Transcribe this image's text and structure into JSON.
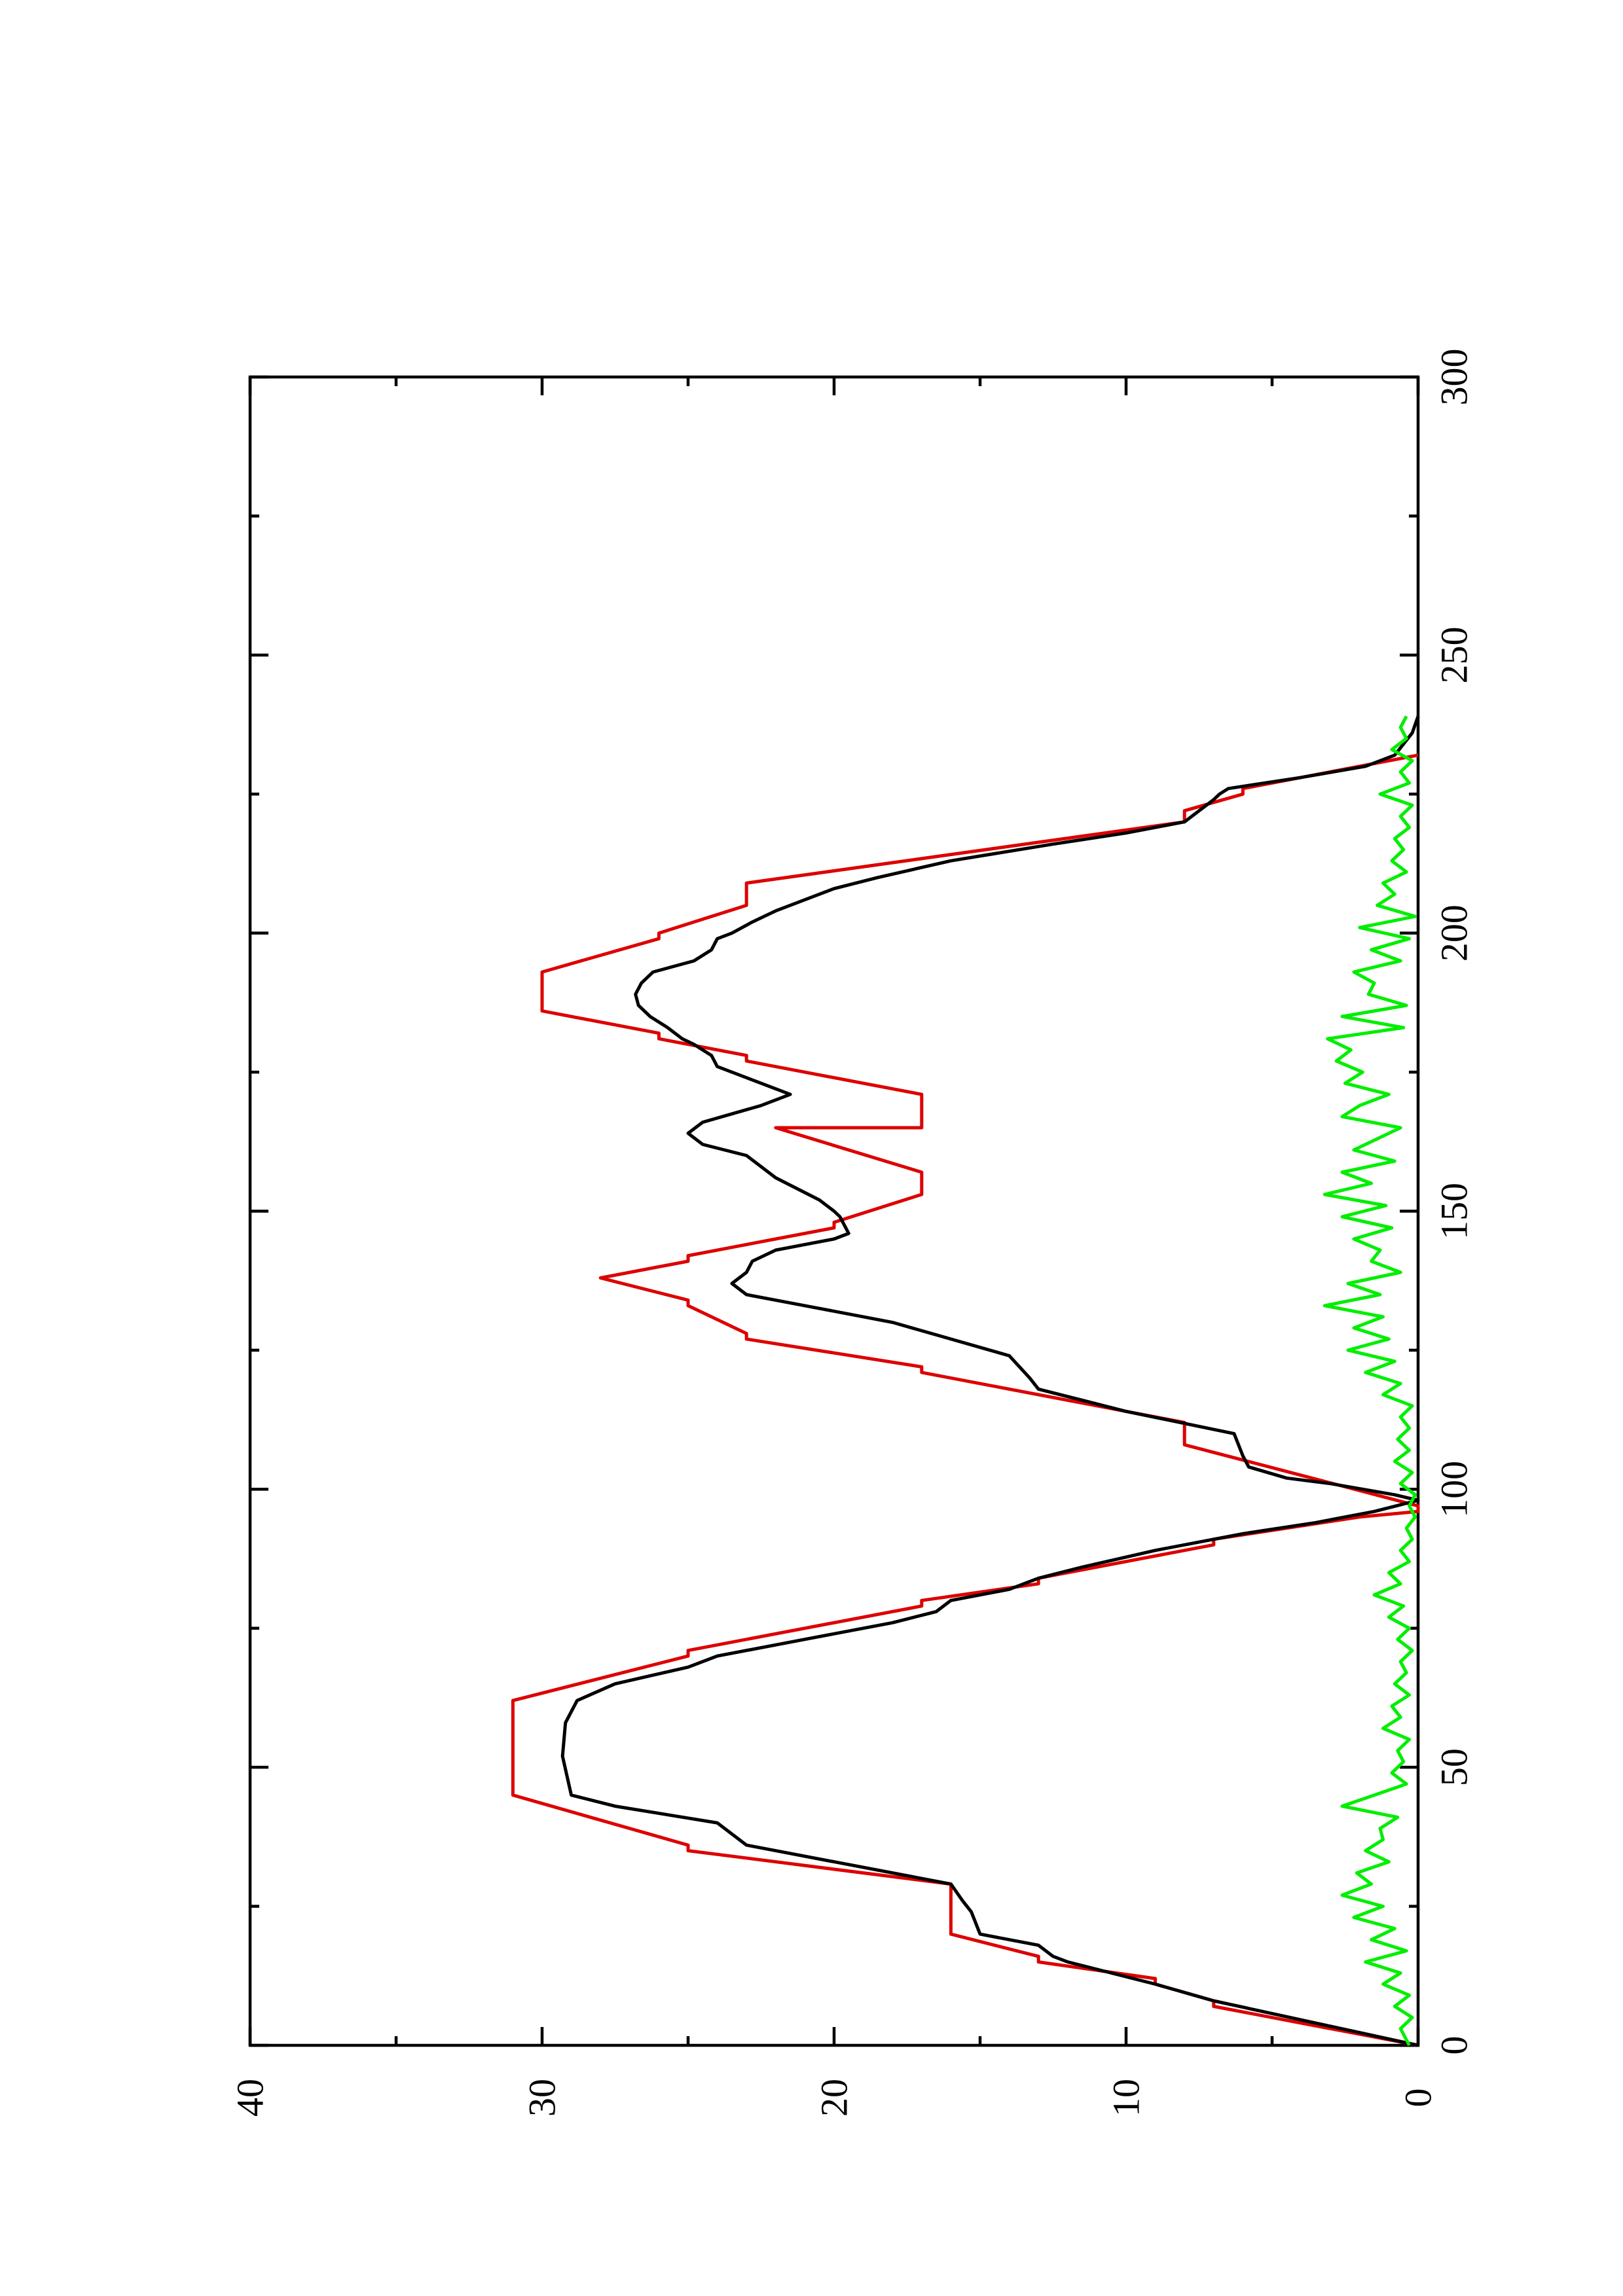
{
  "chart_data": {
    "type": "line",
    "orientation": "rotated-90-ccw",
    "title": "",
    "xlabel": "",
    "ylabel": "",
    "xlim": [
      0,
      300
    ],
    "ylim": [
      0,
      40
    ],
    "x_major_ticks": [
      0,
      50,
      100,
      150,
      200,
      250,
      300
    ],
    "x_minor_ticks": [
      25,
      75,
      125,
      175,
      225,
      275
    ],
    "y_major_ticks": [
      0,
      10,
      20,
      30,
      40
    ],
    "y_minor_ticks": [
      5,
      15,
      25,
      35
    ],
    "x_tick_labels": [
      "0",
      "50",
      "100",
      "150",
      "200",
      "250",
      "300"
    ],
    "y_tick_labels": [
      "0",
      "10",
      "20",
      "30",
      "40"
    ],
    "grid": false,
    "legend": "none",
    "series": [
      {
        "color": "#dd0000",
        "points": [
          [
            0,
            0
          ],
          [
            7,
            7
          ],
          [
            8,
            7
          ],
          [
            11,
            9
          ],
          [
            12,
            9
          ],
          [
            15,
            13
          ],
          [
            16,
            13
          ],
          [
            20,
            16
          ],
          [
            29,
            16
          ],
          [
            35,
            25
          ],
          [
            36,
            25
          ],
          [
            45,
            31
          ],
          [
            62,
            31
          ],
          [
            70,
            25
          ],
          [
            71,
            25
          ],
          [
            79,
            17
          ],
          [
            80,
            17
          ],
          [
            83,
            13
          ],
          [
            84,
            13
          ],
          [
            90,
            7
          ],
          [
            91,
            7
          ],
          [
            95,
            2
          ],
          [
            96,
            0
          ],
          [
            97,
            0
          ],
          [
            108,
            8
          ],
          [
            112,
            8
          ],
          [
            121,
            17
          ],
          [
            122,
            17
          ],
          [
            127,
            23
          ],
          [
            128,
            23
          ],
          [
            133,
            25
          ],
          [
            134,
            25
          ],
          [
            138,
            28
          ],
          [
            141,
            25
          ],
          [
            142,
            25
          ],
          [
            147,
            20
          ],
          [
            148,
            20
          ],
          [
            153,
            17
          ],
          [
            157,
            17
          ],
          [
            165,
            22
          ],
          [
            165,
            17
          ],
          [
            171,
            17
          ],
          [
            177,
            23
          ],
          [
            178,
            23
          ],
          [
            181,
            26
          ],
          [
            182,
            26
          ],
          [
            186,
            30
          ],
          [
            193,
            30
          ],
          [
            199,
            26
          ],
          [
            200,
            26
          ],
          [
            205,
            23
          ],
          [
            209,
            23
          ],
          [
            220,
            8
          ],
          [
            222,
            8
          ],
          [
            225,
            6
          ],
          [
            226,
            6
          ],
          [
            232,
            0
          ]
        ]
      },
      {
        "color": "#000000",
        "points": [
          [
            0,
            0
          ],
          [
            8,
            7
          ],
          [
            11,
            9
          ],
          [
            15,
            12
          ],
          [
            16,
            12.5
          ],
          [
            18,
            13
          ],
          [
            20,
            15
          ],
          [
            24,
            15.3
          ],
          [
            26,
            15.6
          ],
          [
            29,
            16
          ],
          [
            33,
            20
          ],
          [
            36,
            23
          ],
          [
            40,
            24
          ],
          [
            43,
            27.5
          ],
          [
            45,
            29
          ],
          [
            52,
            29.3
          ],
          [
            58,
            29.2
          ],
          [
            62,
            28.8
          ],
          [
            65,
            27.5
          ],
          [
            68,
            25
          ],
          [
            70,
            24
          ],
          [
            73,
            21
          ],
          [
            76,
            18
          ],
          [
            78,
            16.5
          ],
          [
            80,
            16
          ],
          [
            82,
            14
          ],
          [
            84,
            13
          ],
          [
            86,
            11.5
          ],
          [
            89,
            9
          ],
          [
            92,
            6
          ],
          [
            94,
            3.5
          ],
          [
            96,
            1.5
          ],
          [
            98,
            0
          ],
          [
            99,
            0.8
          ],
          [
            101,
            3
          ],
          [
            102,
            4.5
          ],
          [
            104,
            5.8
          ],
          [
            106,
            6
          ],
          [
            110,
            6.3
          ],
          [
            114,
            10
          ],
          [
            118,
            13
          ],
          [
            120,
            13.3
          ],
          [
            124,
            14
          ],
          [
            127,
            16
          ],
          [
            130,
            18
          ],
          [
            133,
            21
          ],
          [
            135,
            23
          ],
          [
            137,
            23.5
          ],
          [
            139,
            23
          ],
          [
            141,
            22.8
          ],
          [
            143,
            22
          ],
          [
            145,
            20
          ],
          [
            146,
            19.5
          ],
          [
            149,
            19.8
          ],
          [
            150,
            20
          ],
          [
            152,
            20.5
          ],
          [
            156,
            22
          ],
          [
            160,
            23
          ],
          [
            162,
            24.5
          ],
          [
            164,
            25
          ],
          [
            166,
            24.5
          ],
          [
            169,
            22.5
          ],
          [
            171,
            21.5
          ],
          [
            174,
            23
          ],
          [
            176,
            24
          ],
          [
            178,
            24.2
          ],
          [
            180,
            24.8
          ],
          [
            181,
            25.2
          ],
          [
            183,
            25.7
          ],
          [
            185,
            26.3
          ],
          [
            187,
            26.7
          ],
          [
            189,
            26.8
          ],
          [
            191,
            26.6
          ],
          [
            193,
            26.2
          ],
          [
            195,
            24.8
          ],
          [
            197,
            24.2
          ],
          [
            199,
            24
          ],
          [
            200,
            23.5
          ],
          [
            202,
            22.8
          ],
          [
            204,
            22
          ],
          [
            206,
            21
          ],
          [
            208,
            20
          ],
          [
            210,
            18.5
          ],
          [
            213,
            16
          ],
          [
            216,
            12.5
          ],
          [
            218,
            10
          ],
          [
            220,
            8
          ],
          [
            222,
            7.5
          ],
          [
            224,
            7
          ],
          [
            225,
            6.8
          ],
          [
            226,
            6.5
          ],
          [
            228,
            4
          ],
          [
            230,
            1.8
          ],
          [
            232,
            0.8
          ],
          [
            234,
            0.5
          ],
          [
            236,
            0.2
          ],
          [
            239,
            0
          ]
        ]
      },
      {
        "color": "#00ee00",
        "points": [
          [
            0,
            0.3
          ],
          [
            3,
            0.6
          ],
          [
            5,
            0.2
          ],
          [
            7,
            0.8
          ],
          [
            9,
            0.3
          ],
          [
            11,
            1.2
          ],
          [
            13,
            0.6
          ],
          [
            15,
            1.8
          ],
          [
            17,
            0.4
          ],
          [
            19,
            1.6
          ],
          [
            21,
            0.8
          ],
          [
            23,
            2.2
          ],
          [
            25,
            1.2
          ],
          [
            27,
            2.6
          ],
          [
            29,
            1.6
          ],
          [
            31,
            2.1
          ],
          [
            33,
            1.0
          ],
          [
            35,
            1.8
          ],
          [
            37,
            1.2
          ],
          [
            39,
            1.3
          ],
          [
            41,
            0.7
          ],
          [
            43,
            2.6
          ],
          [
            45,
            1.5
          ],
          [
            47,
            0.4
          ],
          [
            49,
            0.9
          ],
          [
            51,
            0.5
          ],
          [
            53,
            0.7
          ],
          [
            55,
            0.3
          ],
          [
            57,
            1.2
          ],
          [
            59,
            0.6
          ],
          [
            61,
            0.9
          ],
          [
            63,
            0.3
          ],
          [
            65,
            0.8
          ],
          [
            67,
            0.4
          ],
          [
            69,
            0.6
          ],
          [
            71,
            0.2
          ],
          [
            73,
            0.7
          ],
          [
            75,
            0.3
          ],
          [
            77,
            1.0
          ],
          [
            79,
            0.5
          ],
          [
            81,
            1.5
          ],
          [
            83,
            0.6
          ],
          [
            85,
            1.0
          ],
          [
            87,
            0.3
          ],
          [
            89,
            0.6
          ],
          [
            91,
            0.2
          ],
          [
            93,
            0.4
          ],
          [
            95,
            0.1
          ],
          [
            97,
            0.3
          ],
          [
            99,
            0.1
          ],
          [
            101,
            0.6
          ],
          [
            103,
            0.2
          ],
          [
            105,
            0.8
          ],
          [
            107,
            0.3
          ],
          [
            109,
            0.7
          ],
          [
            111,
            0.3
          ],
          [
            113,
            0.6
          ],
          [
            115,
            0.2
          ],
          [
            117,
            1.2
          ],
          [
            119,
            0.6
          ],
          [
            121,
            1.8
          ],
          [
            123,
            0.8
          ],
          [
            125,
            2.4
          ],
          [
            127,
            1.0
          ],
          [
            129,
            2.2
          ],
          [
            131,
            1.2
          ],
          [
            133,
            3.2
          ],
          [
            135,
            1.3
          ],
          [
            137,
            2.4
          ],
          [
            139,
            0.6
          ],
          [
            141,
            1.6
          ],
          [
            143,
            1.3
          ],
          [
            145,
            2.2
          ],
          [
            147,
            0.9
          ],
          [
            149,
            2.6
          ],
          [
            151,
            1.1
          ],
          [
            153,
            3.2
          ],
          [
            155,
            1.6
          ],
          [
            157,
            2.6
          ],
          [
            159,
            0.8
          ],
          [
            161,
            2.2
          ],
          [
            163,
            1.4
          ],
          [
            165,
            0.6
          ],
          [
            167,
            2.6
          ],
          [
            169,
            2.0
          ],
          [
            171,
            1.0
          ],
          [
            173,
            2.5
          ],
          [
            175,
            1.9
          ],
          [
            177,
            2.8
          ],
          [
            179,
            2.3
          ],
          [
            181,
            3.1
          ],
          [
            183,
            0.5
          ],
          [
            185,
            2.6
          ],
          [
            187,
            0.4
          ],
          [
            189,
            1.7
          ],
          [
            191,
            1.5
          ],
          [
            193,
            2.2
          ],
          [
            195,
            0.6
          ],
          [
            197,
            1.6
          ],
          [
            199,
            0.3
          ],
          [
            201,
            2.0
          ],
          [
            203,
            0.1
          ],
          [
            205,
            1.4
          ],
          [
            207,
            0.8
          ],
          [
            209,
            1.2
          ],
          [
            211,
            0.4
          ],
          [
            213,
            0.9
          ],
          [
            215,
            0.5
          ],
          [
            217,
            0.8
          ],
          [
            219,
            0.3
          ],
          [
            221,
            0.6
          ],
          [
            223,
            0.2
          ],
          [
            225,
            1.3
          ],
          [
            227,
            0.3
          ],
          [
            229,
            0.6
          ],
          [
            231,
            0.2
          ],
          [
            233,
            0.9
          ],
          [
            235,
            0.4
          ],
          [
            237,
            0.6
          ],
          [
            239,
            0.4
          ]
        ]
      }
    ]
  }
}
